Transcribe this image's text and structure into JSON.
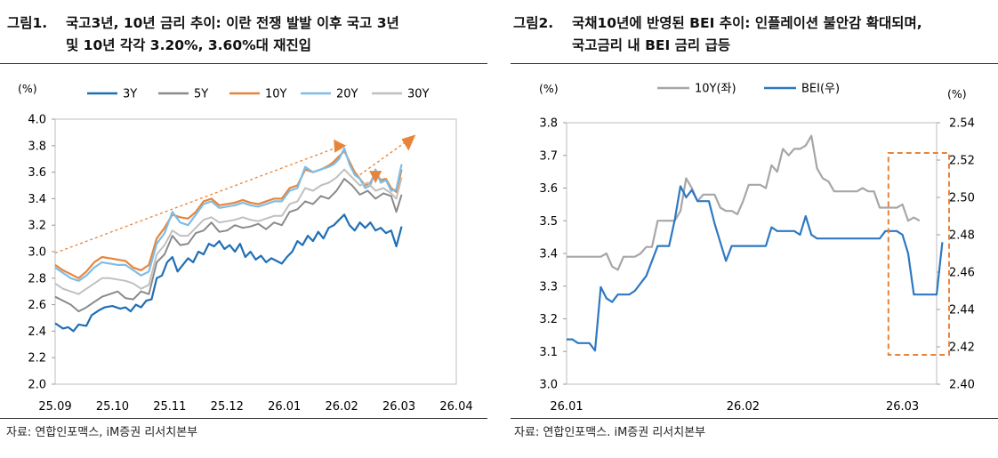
{
  "panel1": {
    "fig_label": "그림1.",
    "title_line1": "국고3년, 10년 금리 추이: 이란 전쟁 발발 이후 국고 3년",
    "title_line2": "및 10년 각각 3.20%, 3.60%대 재진입",
    "source": "자료: 연합인포맥스, iM증권 리서치본부"
  },
  "panel2": {
    "fig_label": "그림2.",
    "title_line1": "국채10년에 반영된 BEI 추이: 인플레이션 불안감 확대되며,",
    "title_line2": "국고금리 내 BEI 금리 급등",
    "source": "자료: 연합인포맥스. iM증권 리서치본부"
  },
  "chart_data": [
    {
      "type": "line",
      "title": "국고3년, 10년 금리 추이",
      "ylabel": "(%)",
      "ylim": [
        2.0,
        4.0
      ],
      "yticks": [
        "4.0",
        "3.8",
        "3.6",
        "3.4",
        "3.2",
        "3.0",
        "2.8",
        "2.6",
        "2.4",
        "2.2",
        "2.0"
      ],
      "xtick_labels": [
        "25.09",
        "25.10",
        "25.11",
        "25.12",
        "26.01",
        "26.02",
        "26.03",
        "26.04"
      ],
      "xtick_positions": [
        0,
        22,
        44,
        66,
        88,
        110,
        132,
        154
      ],
      "x_max": 154,
      "series": [
        {
          "name": "3Y",
          "color": "#1f6fb5",
          "width": 2.2,
          "t": [
            0,
            3,
            5,
            7,
            9,
            12,
            14,
            17,
            19,
            22,
            25,
            27,
            29,
            31,
            33,
            35,
            37,
            39,
            41,
            43,
            45,
            47,
            49,
            51,
            53,
            55,
            57,
            59,
            61,
            63,
            65,
            67,
            69,
            71,
            73,
            75,
            77,
            79,
            81,
            83,
            85,
            87,
            89,
            91,
            93,
            95,
            97,
            99,
            101,
            103,
            105,
            107,
            109,
            111,
            113,
            115,
            117,
            119,
            121,
            123,
            125,
            127,
            129,
            131,
            133
          ],
          "values": [
            2.46,
            2.42,
            2.43,
            2.4,
            2.45,
            2.44,
            2.52,
            2.56,
            2.58,
            2.59,
            2.57,
            2.58,
            2.55,
            2.6,
            2.58,
            2.63,
            2.64,
            2.8,
            2.82,
            2.92,
            2.96,
            2.85,
            2.9,
            2.95,
            2.92,
            3.0,
            2.98,
            3.06,
            3.04,
            3.08,
            3.02,
            3.05,
            3.0,
            3.06,
            2.96,
            3.0,
            2.94,
            2.97,
            2.92,
            2.95,
            2.93,
            2.91,
            2.96,
            3.0,
            3.08,
            3.05,
            3.12,
            3.08,
            3.15,
            3.1,
            3.18,
            3.2,
            3.24,
            3.28,
            3.2,
            3.16,
            3.22,
            3.18,
            3.22,
            3.16,
            3.18,
            3.14,
            3.16,
            3.04,
            3.19
          ]
        },
        {
          "name": "5Y",
          "color": "#8a8a8a",
          "width": 2,
          "t": [
            0,
            3,
            6,
            9,
            12,
            15,
            18,
            21,
            24,
            27,
            30,
            33,
            36,
            39,
            42,
            45,
            48,
            51,
            54,
            57,
            60,
            63,
            66,
            69,
            72,
            75,
            78,
            81,
            84,
            87,
            90,
            93,
            96,
            99,
            102,
            105,
            108,
            111,
            114,
            117,
            120,
            123,
            126,
            129,
            131,
            133
          ],
          "values": [
            2.66,
            2.63,
            2.6,
            2.55,
            2.58,
            2.62,
            2.66,
            2.68,
            2.7,
            2.65,
            2.64,
            2.7,
            2.68,
            2.92,
            2.98,
            3.12,
            3.05,
            3.06,
            3.14,
            3.16,
            3.22,
            3.15,
            3.16,
            3.2,
            3.18,
            3.19,
            3.21,
            3.17,
            3.22,
            3.2,
            3.3,
            3.32,
            3.38,
            3.36,
            3.42,
            3.4,
            3.46,
            3.55,
            3.5,
            3.43,
            3.46,
            3.4,
            3.44,
            3.42,
            3.3,
            3.43
          ]
        },
        {
          "name": "10Y",
          "color": "#e8843a",
          "width": 2.2,
          "t": [
            0,
            3,
            6,
            9,
            12,
            15,
            18,
            21,
            24,
            27,
            30,
            33,
            36,
            39,
            42,
            45,
            48,
            51,
            54,
            57,
            60,
            63,
            66,
            69,
            72,
            75,
            78,
            81,
            84,
            87,
            90,
            93,
            96,
            99,
            102,
            105,
            107,
            109,
            111,
            113,
            115,
            117,
            119,
            121,
            123,
            125,
            127,
            129,
            131,
            133
          ],
          "values": [
            2.9,
            2.86,
            2.83,
            2.8,
            2.85,
            2.92,
            2.96,
            2.95,
            2.94,
            2.93,
            2.88,
            2.86,
            2.9,
            3.1,
            3.18,
            3.28,
            3.26,
            3.25,
            3.3,
            3.38,
            3.4,
            3.35,
            3.36,
            3.37,
            3.39,
            3.37,
            3.36,
            3.38,
            3.4,
            3.4,
            3.48,
            3.5,
            3.62,
            3.6,
            3.62,
            3.65,
            3.68,
            3.72,
            3.76,
            3.68,
            3.6,
            3.55,
            3.5,
            3.52,
            3.6,
            3.54,
            3.55,
            3.48,
            3.45,
            3.62
          ]
        },
        {
          "name": "20Y",
          "color": "#7ebde6",
          "width": 2.2,
          "t": [
            0,
            3,
            6,
            9,
            12,
            15,
            18,
            21,
            24,
            27,
            30,
            33,
            36,
            39,
            42,
            45,
            48,
            51,
            54,
            57,
            60,
            63,
            66,
            69,
            72,
            75,
            78,
            81,
            84,
            87,
            90,
            93,
            96,
            99,
            102,
            105,
            107,
            109,
            111,
            113,
            115,
            117,
            119,
            121,
            123,
            125,
            127,
            129,
            131,
            133
          ],
          "values": [
            2.88,
            2.84,
            2.8,
            2.78,
            2.82,
            2.88,
            2.92,
            2.91,
            2.9,
            2.9,
            2.86,
            2.82,
            2.85,
            3.06,
            3.14,
            3.3,
            3.22,
            3.2,
            3.28,
            3.36,
            3.38,
            3.33,
            3.34,
            3.35,
            3.37,
            3.35,
            3.34,
            3.36,
            3.38,
            3.38,
            3.46,
            3.48,
            3.64,
            3.6,
            3.62,
            3.64,
            3.66,
            3.7,
            3.78,
            3.66,
            3.58,
            3.55,
            3.48,
            3.5,
            3.62,
            3.52,
            3.54,
            3.46,
            3.47,
            3.66
          ]
        },
        {
          "name": "30Y",
          "color": "#c0c0c0",
          "width": 2,
          "t": [
            0,
            3,
            6,
            9,
            12,
            15,
            18,
            21,
            24,
            27,
            30,
            33,
            36,
            39,
            42,
            45,
            48,
            51,
            54,
            57,
            60,
            63,
            66,
            69,
            72,
            75,
            78,
            81,
            84,
            87,
            90,
            93,
            96,
            99,
            102,
            105,
            108,
            111,
            114,
            117,
            120,
            123,
            126,
            129,
            131,
            133
          ],
          "values": [
            2.76,
            2.72,
            2.7,
            2.68,
            2.72,
            2.76,
            2.8,
            2.8,
            2.79,
            2.78,
            2.76,
            2.72,
            2.75,
            2.98,
            3.05,
            3.16,
            3.12,
            3.12,
            3.18,
            3.24,
            3.26,
            3.22,
            3.23,
            3.24,
            3.26,
            3.24,
            3.23,
            3.25,
            3.27,
            3.27,
            3.36,
            3.38,
            3.48,
            3.46,
            3.5,
            3.52,
            3.56,
            3.62,
            3.56,
            3.5,
            3.52,
            3.46,
            3.48,
            3.44,
            3.4,
            3.56
          ]
        }
      ],
      "annotations": [
        {
          "type": "trend",
          "from": [
            0,
            2.99
          ],
          "to": [
            110,
            3.8
          ],
          "color": "#e8843a",
          "style": "dashed"
        },
        {
          "type": "trend",
          "from": [
            117,
            3.58
          ],
          "to": [
            134,
            3.82
          ],
          "color": "#e8843a",
          "style": "dashed"
        },
        {
          "type": "arrow_head",
          "at": [
            109,
            3.8
          ],
          "dir": "right",
          "color": "#e8843a"
        },
        {
          "type": "arrow_head",
          "at": [
            135,
            3.83
          ],
          "dir": "up-right",
          "color": "#e8843a"
        },
        {
          "type": "arrow_head",
          "at": [
            123,
            3.57
          ],
          "dir": "down",
          "color": "#e8843a"
        }
      ]
    },
    {
      "type": "line",
      "title": "국채10년에 반영된 BEI 추이",
      "ylabel_left": "(%)",
      "ylabel_right": "(%)",
      "ylim_left": [
        3.0,
        3.8
      ],
      "ylim_right": [
        2.4,
        2.54
      ],
      "yticks_left": [
        "3.8",
        "3.7",
        "3.6",
        "3.5",
        "3.4",
        "3.3",
        "3.2",
        "3.1",
        "3.0"
      ],
      "yticks_right": [
        "2.54",
        "2.52",
        "2.50",
        "2.48",
        "2.46",
        "2.44",
        "2.42",
        "2.40"
      ],
      "xtick_labels": [
        "26.01",
        "26.02",
        "26.03"
      ],
      "xtick_positions": [
        0,
        31,
        59
      ],
      "x_max": 65,
      "series": [
        {
          "name": "10Y(좌)",
          "axis": "left",
          "color": "#a6a6a6",
          "width": 2.2,
          "t": [
            0,
            2,
            4,
            6,
            7,
            8,
            9,
            10,
            11,
            12,
            13,
            14,
            15,
            16,
            17,
            18,
            19,
            20,
            21,
            22,
            23,
            24,
            25,
            26,
            27,
            28,
            29,
            30,
            31,
            32,
            33,
            34,
            35,
            36,
            37,
            38,
            39,
            40,
            41,
            42,
            43,
            44,
            45,
            46,
            47,
            48,
            49,
            50,
            51,
            52,
            53,
            54,
            55,
            56,
            57,
            58,
            59,
            60,
            61,
            62
          ],
          "values": [
            3.39,
            3.39,
            3.39,
            3.39,
            3.4,
            3.36,
            3.35,
            3.39,
            3.39,
            3.39,
            3.4,
            3.42,
            3.42,
            3.5,
            3.5,
            3.5,
            3.5,
            3.53,
            3.63,
            3.6,
            3.56,
            3.58,
            3.58,
            3.58,
            3.54,
            3.53,
            3.53,
            3.52,
            3.56,
            3.61,
            3.61,
            3.61,
            3.6,
            3.67,
            3.65,
            3.72,
            3.7,
            3.72,
            3.72,
            3.73,
            3.76,
            3.66,
            3.63,
            3.62,
            3.59,
            3.59,
            3.59,
            3.59,
            3.59,
            3.6,
            3.59,
            3.59,
            3.54,
            3.54,
            3.54,
            3.54,
            3.55,
            3.5,
            3.51,
            3.5
          ]
        },
        {
          "name": "BEI(우)",
          "axis": "right",
          "color": "#2e78c2",
          "width": 2.2,
          "t": [
            0,
            1,
            2,
            3,
            4,
            5,
            6,
            7,
            8,
            9,
            10,
            11,
            12,
            13,
            14,
            15,
            16,
            17,
            18,
            19,
            20,
            21,
            22,
            23,
            24,
            25,
            26,
            27,
            28,
            29,
            30,
            31,
            32,
            33,
            34,
            35,
            36,
            37,
            38,
            39,
            40,
            41,
            42,
            43,
            44,
            45,
            46,
            47,
            48,
            49,
            50,
            51,
            52,
            53,
            54,
            55,
            56,
            57,
            58,
            59,
            60,
            61,
            62,
            63,
            64,
            65,
            66
          ],
          "values": [
            2.424,
            2.424,
            2.422,
            2.422,
            2.422,
            2.418,
            2.452,
            2.446,
            2.444,
            2.448,
            2.448,
            2.448,
            2.45,
            2.454,
            2.458,
            2.466,
            2.474,
            2.474,
            2.474,
            2.488,
            2.506,
            2.5,
            2.504,
            2.498,
            2.498,
            2.498,
            2.486,
            2.476,
            2.466,
            2.474,
            2.474,
            2.474,
            2.474,
            2.474,
            2.474,
            2.474,
            2.484,
            2.482,
            2.482,
            2.482,
            2.482,
            2.48,
            2.49,
            2.48,
            2.478,
            2.478,
            2.478,
            2.478,
            2.478,
            2.478,
            2.478,
            2.478,
            2.478,
            2.478,
            2.478,
            2.478,
            2.482,
            2.482,
            2.482,
            2.48,
            2.47,
            2.448,
            2.448,
            2.448,
            2.448,
            2.448,
            2.476
          ]
        }
      ],
      "annotations": [
        {
          "type": "highlight_box",
          "x_range": [
            57,
            66
          ],
          "color": "#e8843a",
          "style": "dashed"
        }
      ]
    }
  ]
}
